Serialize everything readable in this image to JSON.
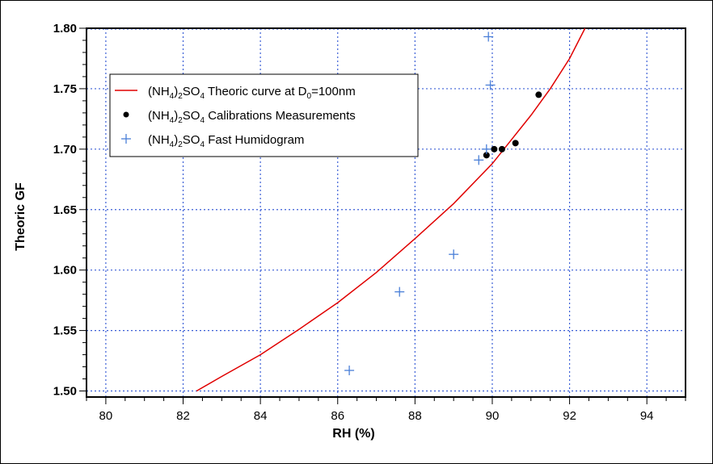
{
  "chart_data": {
    "type": "scatter",
    "title": "",
    "xlabel": "RH (%)",
    "ylabel": "Theoric GF",
    "xlim": [
      79.5,
      95
    ],
    "ylim": [
      1.495,
      1.8
    ],
    "xticks": [
      "80",
      "82",
      "84",
      "86",
      "88",
      "90",
      "92",
      "94"
    ],
    "yticks": [
      "1.50",
      "1.55",
      "1.60",
      "1.65",
      "1.70",
      "1.75",
      "1.80"
    ],
    "grid": true,
    "legend_position": "upper-left",
    "series": [
      {
        "kind": "line",
        "color": "#e00000",
        "legend": {
          "pre": "(NH",
          "sub1": "4",
          "mid": ")",
          "sub2": "2",
          "so": "SO",
          "sub3": "4",
          "post": " Theoric curve at D",
          "sub4": "0",
          "tail": "=100nm"
        },
        "x": [
          82.35,
          83,
          84,
          85,
          86,
          87,
          88,
          89,
          90,
          91,
          91.5,
          92,
          92.4
        ],
        "y": [
          1.5,
          1.512,
          1.53,
          1.551,
          1.573,
          1.598,
          1.626,
          1.655,
          1.688,
          1.728,
          1.75,
          1.775,
          1.8
        ]
      },
      {
        "kind": "points",
        "marker": "dot",
        "color": "#000000",
        "legend": {
          "pre": "(NH",
          "sub1": "4",
          "mid": ")",
          "sub2": "2",
          "so": "SO",
          "sub3": "4",
          "post": "  Calibrations Measurements"
        },
        "x": [
          89.85,
          90.05,
          90.25,
          90.6,
          91.2
        ],
        "y": [
          1.695,
          1.7,
          1.7,
          1.705,
          1.745
        ]
      },
      {
        "kind": "points",
        "marker": "plus",
        "color": "#4a7fd8",
        "legend": {
          "pre": "(NH",
          "sub1": "4",
          "mid": ")",
          "sub2": "2",
          "so": "SO",
          "sub3": "4",
          "post": "  Fast Humidogram"
        },
        "x": [
          86.3,
          87.6,
          89.0,
          89.65,
          89.85,
          89.9,
          89.95
        ],
        "y": [
          1.517,
          1.582,
          1.613,
          1.691,
          1.7,
          1.793,
          1.753
        ]
      }
    ]
  }
}
